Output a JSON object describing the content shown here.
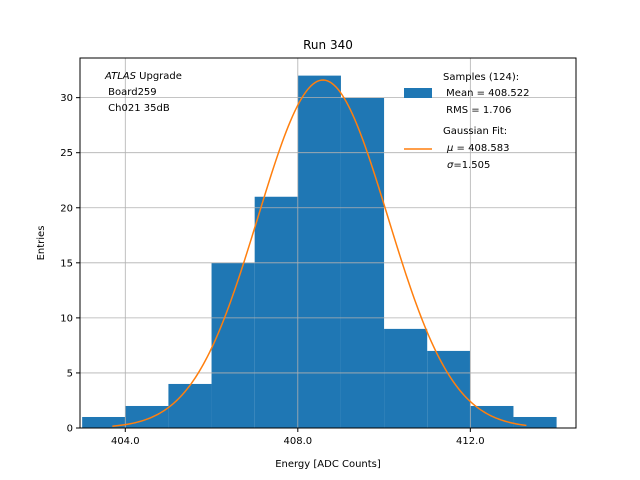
{
  "chart_data": {
    "type": "bar",
    "title": "Run 340",
    "xlabel": "Energy [ADC Counts]",
    "ylabel": "Entries",
    "xlim": [
      402.95,
      414.45
    ],
    "ylim": [
      0,
      33.6
    ],
    "grid": true,
    "xticks": [
      404.0,
      408.0,
      412.0
    ],
    "xtick_labels": [
      "404.0",
      "408.0",
      "412.0"
    ],
    "yticks": [
      0,
      5,
      10,
      15,
      20,
      25,
      30
    ],
    "ytick_labels": [
      "0",
      "5",
      "10",
      "15",
      "20",
      "25",
      "30"
    ],
    "histogram": {
      "name": "Samples (124)",
      "bin_edges": [
        403.0,
        404.0,
        405.0,
        406.0,
        407.0,
        408.0,
        409.0,
        410.0,
        411.0,
        412.0,
        413.0,
        414.0
      ],
      "counts": [
        1,
        2,
        4,
        15,
        21,
        32,
        30,
        9,
        7,
        2,
        1
      ],
      "color": "#1f77b4"
    },
    "fit": {
      "name": "Gaussian Fit",
      "mu": 408.583,
      "sigma": 1.505,
      "amplitude": 31.6,
      "x_range": [
        403.7,
        413.3
      ],
      "color": "#ff7f0e"
    },
    "legend": {
      "position": "top-right",
      "samples_label": "Samples (124):",
      "mean_label": " Mean = 408.522",
      "rms_label": " RMS = 1.706",
      "fit_label": "Gaussian Fit:",
      "mu_symbol": "μ",
      "mu_value": " = 408.583",
      "sigma_symbol": "σ",
      "sigma_value": "=1.505"
    },
    "annotation": {
      "position": "top-left",
      "experiment": "ATLAS",
      "line1_suffix": " Upgrade",
      "line2": " Board259",
      "line3": " Ch021 35dB"
    }
  },
  "colors": {
    "axis": "#000000",
    "grid": "#b0b0b0",
    "bar": "#1f77b4",
    "fit": "#ff7f0e"
  }
}
